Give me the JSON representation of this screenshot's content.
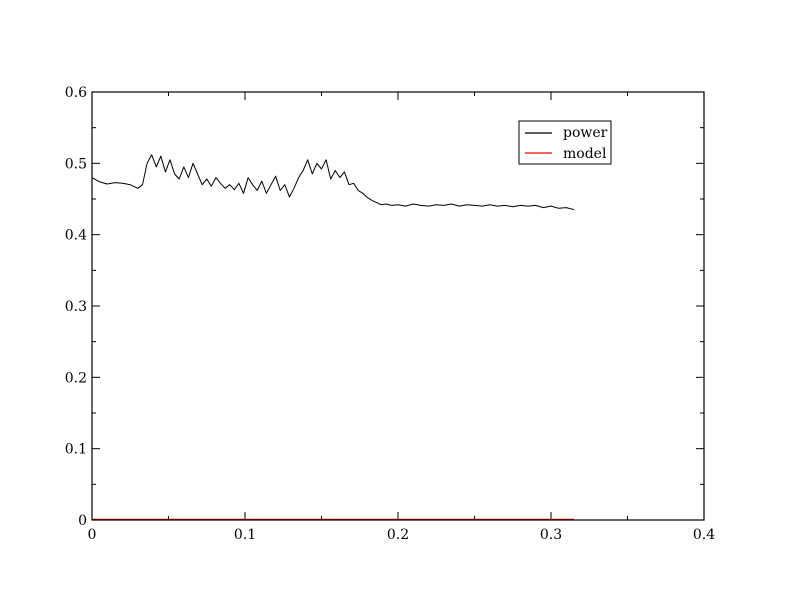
{
  "chart_data": {
    "type": "line",
    "title": "",
    "xlabel": "",
    "ylabel": "",
    "xlim": [
      0,
      0.4
    ],
    "ylim": [
      0,
      0.6
    ],
    "x_ticks": [
      "0",
      "0.1",
      "0.2",
      "0.3",
      "0.4"
    ],
    "y_ticks": [
      "0",
      "0.1",
      "0.2",
      "0.3",
      "0.4",
      "0.5",
      "0.6"
    ],
    "grid": false,
    "legend": {
      "placement": "top-right"
    },
    "series": [
      {
        "name": "power",
        "color": "#000000",
        "x": [
          0.0,
          0.005,
          0.01,
          0.015,
          0.02,
          0.025,
          0.03,
          0.033,
          0.036,
          0.039,
          0.042,
          0.045,
          0.048,
          0.051,
          0.054,
          0.057,
          0.06,
          0.063,
          0.066,
          0.069,
          0.072,
          0.075,
          0.078,
          0.081,
          0.084,
          0.087,
          0.09,
          0.093,
          0.096,
          0.099,
          0.102,
          0.105,
          0.108,
          0.111,
          0.114,
          0.117,
          0.12,
          0.123,
          0.126,
          0.129,
          0.132,
          0.135,
          0.138,
          0.141,
          0.144,
          0.147,
          0.15,
          0.153,
          0.156,
          0.159,
          0.162,
          0.165,
          0.168,
          0.171,
          0.174,
          0.177,
          0.18,
          0.183,
          0.186,
          0.189,
          0.192,
          0.196,
          0.2,
          0.205,
          0.21,
          0.215,
          0.22,
          0.225,
          0.23,
          0.235,
          0.24,
          0.245,
          0.25,
          0.255,
          0.26,
          0.265,
          0.27,
          0.275,
          0.28,
          0.285,
          0.29,
          0.295,
          0.3,
          0.305,
          0.31,
          0.315
        ],
        "y": [
          0.48,
          0.474,
          0.471,
          0.473,
          0.472,
          0.47,
          0.465,
          0.47,
          0.5,
          0.512,
          0.495,
          0.51,
          0.488,
          0.505,
          0.485,
          0.478,
          0.495,
          0.48,
          0.5,
          0.485,
          0.47,
          0.478,
          0.468,
          0.48,
          0.472,
          0.465,
          0.47,
          0.463,
          0.472,
          0.458,
          0.48,
          0.47,
          0.462,
          0.475,
          0.458,
          0.47,
          0.482,
          0.462,
          0.47,
          0.453,
          0.465,
          0.48,
          0.49,
          0.505,
          0.485,
          0.5,
          0.492,
          0.505,
          0.478,
          0.49,
          0.48,
          0.488,
          0.47,
          0.472,
          0.462,
          0.458,
          0.452,
          0.448,
          0.445,
          0.442,
          0.443,
          0.441,
          0.442,
          0.44,
          0.443,
          0.441,
          0.44,
          0.442,
          0.441,
          0.443,
          0.44,
          0.442,
          0.441,
          0.44,
          0.442,
          0.44,
          0.441,
          0.439,
          0.441,
          0.44,
          0.441,
          0.438,
          0.44,
          0.437,
          0.438,
          0.435
        ]
      },
      {
        "name": "model",
        "color": "#ff0000",
        "x": [
          0.0,
          0.05,
          0.1,
          0.15,
          0.2,
          0.25,
          0.3,
          0.315
        ],
        "y": [
          0.001,
          0.001,
          0.001,
          0.001,
          0.001,
          0.001,
          0.001,
          0.001
        ]
      }
    ]
  }
}
